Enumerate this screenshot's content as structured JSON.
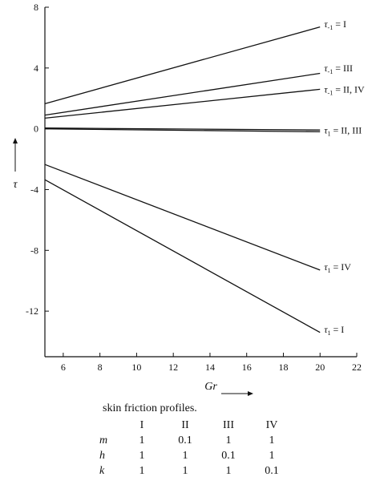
{
  "chart_data": {
    "type": "line",
    "xlabel": "Gr",
    "ylabel": "τ",
    "xlim": [
      5,
      22
    ],
    "ylim": [
      -15,
      8
    ],
    "x_ticks": [
      6,
      8,
      10,
      12,
      14,
      16,
      18,
      20,
      22
    ],
    "y_ticks": [
      8,
      4,
      0,
      -4,
      -8,
      -12
    ],
    "grid": false,
    "series": [
      {
        "name": "τ₋₁ = I",
        "x": [
          5,
          20
        ],
        "y": [
          1.65,
          6.7
        ]
      },
      {
        "name": "τ₋₁ = III",
        "x": [
          5,
          20
        ],
        "y": [
          0.9,
          3.65
        ]
      },
      {
        "name": "τ₋₁ = II, IV",
        "x": [
          5,
          20
        ],
        "y": [
          0.7,
          2.6
        ]
      },
      {
        "name": "",
        "x": [
          5,
          20
        ],
        "y": [
          0.05,
          -0.08
        ]
      },
      {
        "name": "τ₁ = II, III",
        "x": [
          5,
          20
        ],
        "y": [
          0.0,
          -0.2
        ]
      },
      {
        "name": "τ₁ = IV",
        "x": [
          5,
          20
        ],
        "y": [
          -2.35,
          -9.3
        ]
      },
      {
        "name": "τ₁ = I",
        "x": [
          5,
          20
        ],
        "y": [
          -3.35,
          -13.4
        ]
      }
    ],
    "labels": [
      {
        "base": "τ",
        "sub": "-1",
        "rest": " = I",
        "y": 6.9
      },
      {
        "base": "τ",
        "sub": "-1",
        "rest": " = III",
        "y": 4.0
      },
      {
        "base": "τ",
        "sub": "-1",
        "rest": " = II, IV",
        "y": 2.6
      },
      {
        "base": "τ",
        "sub": "1",
        "rest": " = II, III",
        "y": -0.1
      },
      {
        "base": "τ",
        "sub": "1",
        "rest": " = IV",
        "y": -9.1
      },
      {
        "base": "τ",
        "sub": "1",
        "rest": " = I",
        "y": -13.2
      }
    ]
  },
  "caption": "skin friction profiles.",
  "table": {
    "columns": [
      "I",
      "II",
      "III",
      "IV"
    ],
    "rows": [
      {
        "name": "m",
        "values": [
          "1",
          "0.1",
          "1",
          "1"
        ]
      },
      {
        "name": "h",
        "values": [
          "1",
          "1",
          "0.1",
          "1"
        ]
      },
      {
        "name": "k",
        "values": [
          "1",
          "1",
          "1",
          "0.1"
        ]
      }
    ]
  }
}
